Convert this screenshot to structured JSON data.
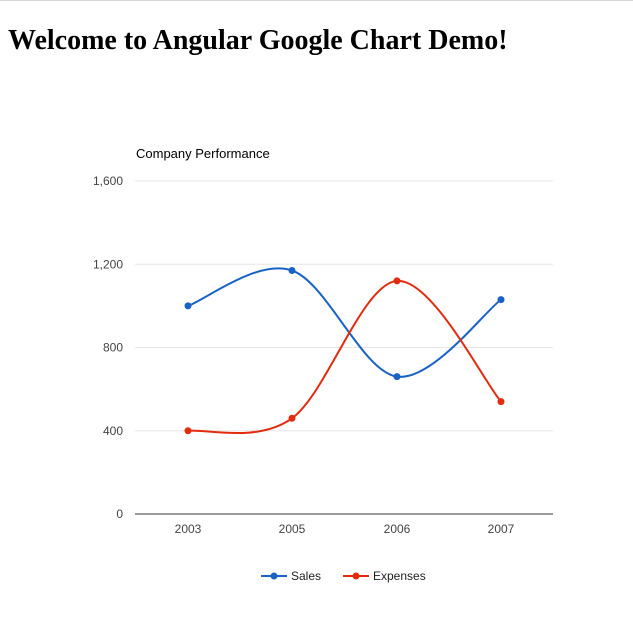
{
  "page": {
    "heading": "Welcome to Angular Google Chart Demo!"
  },
  "chart_data": {
    "type": "line",
    "title": "Company Performance",
    "categories": [
      "2003",
      "2005",
      "2006",
      "2007"
    ],
    "series": [
      {
        "name": "Sales",
        "values": [
          1000,
          1170,
          660,
          1030
        ],
        "color": "#1a63c6"
      },
      {
        "name": "Expenses",
        "values": [
          400,
          460,
          1120,
          540
        ],
        "color": "#e22c10"
      }
    ],
    "y_ticks": [
      0,
      400,
      800,
      1200,
      1600
    ],
    "y_tick_labels": [
      "0",
      "400",
      "800",
      "1,200",
      "1,600"
    ],
    "ylim": [
      0,
      1600
    ],
    "curve": "smooth",
    "grid": true,
    "legend_position": "bottom",
    "colors": {
      "gridline": "#e6e6e6",
      "baseline": "#333333",
      "tick_text": "#444444",
      "title_text": "#000000"
    }
  }
}
